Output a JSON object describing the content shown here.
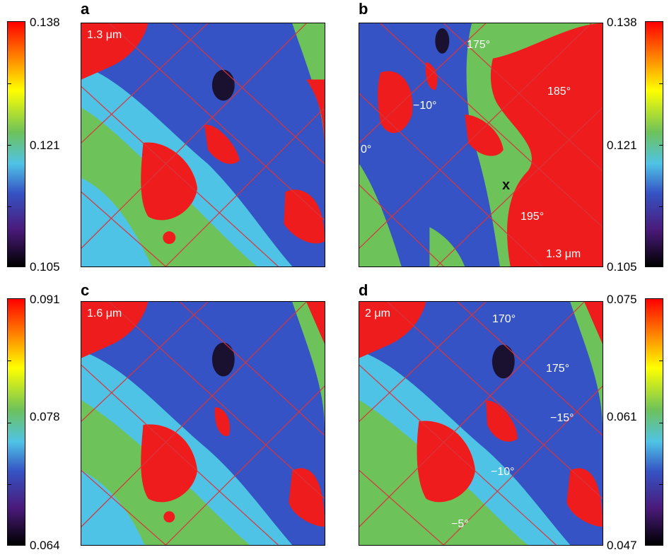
{
  "panels": {
    "a": {
      "label": "a",
      "tags": [
        "1.3 μm"
      ]
    },
    "b": {
      "label": "b",
      "tags": [
        "175°",
        "185°",
        "−10°",
        "0°",
        "195°",
        "1.3 μm"
      ],
      "marker": "x"
    },
    "c": {
      "label": "c",
      "tags": [
        "1.6 μm"
      ]
    },
    "d": {
      "label": "d",
      "tags": [
        "2 μm",
        "170°",
        "175°",
        "−15°",
        "−10°",
        "−5°"
      ]
    }
  },
  "colorbars": {
    "top_left": {
      "max": "0.138",
      "mid": "0.121",
      "min": "0.105"
    },
    "top_right": {
      "max": "0.138",
      "mid": "0.121",
      "min": "0.105"
    },
    "bottom_left": {
      "max": "0.091",
      "mid": "0.078",
      "min": "0.064"
    },
    "bottom_right": {
      "max": "0.075",
      "mid": "0.061",
      "min": "0.047"
    }
  },
  "colors": {
    "high": "#ee1c1c",
    "blue": "#3553c4",
    "cyan": "#4fc3e6",
    "green": "#6ec25a",
    "dark": "#1a1030",
    "line": "#d9343a"
  }
}
